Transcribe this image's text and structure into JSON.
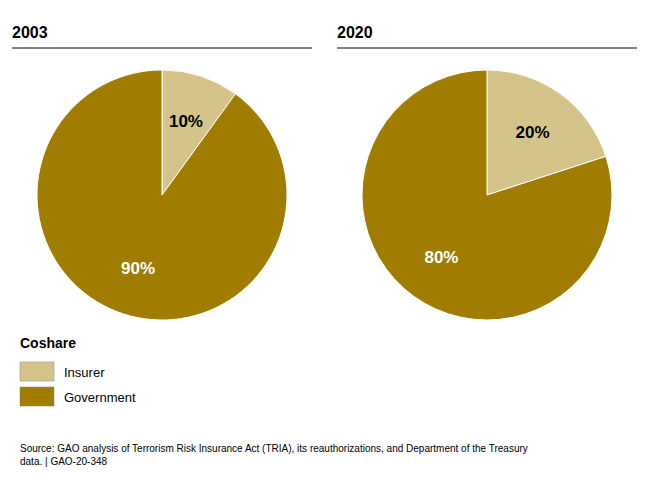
{
  "chart_data": [
    {
      "type": "pie",
      "title": "2003",
      "categories": [
        "Insurer",
        "Government"
      ],
      "values": [
        10,
        90
      ],
      "value_labels": [
        "10%",
        "90%"
      ],
      "colors": [
        "#d4c48a",
        "#a07c00"
      ],
      "data_labels": true,
      "legend": "bottom-left",
      "legend_title": "Coshare",
      "annotations": [
        "Source: GAO analysis of Terrorism Risk Insurance Act (TRIA), its reauthorizations, and Department of the Treasury\ndata. | GAO-20-348"
      ]
    },
    {
      "type": "pie",
      "title": "2020",
      "categories": [
        "Insurer",
        "Government"
      ],
      "values": [
        20,
        80
      ],
      "value_labels": [
        "20%",
        "80%"
      ],
      "colors": [
        "#d4c48a",
        "#a07c00"
      ],
      "data_labels": true
    }
  ]
}
